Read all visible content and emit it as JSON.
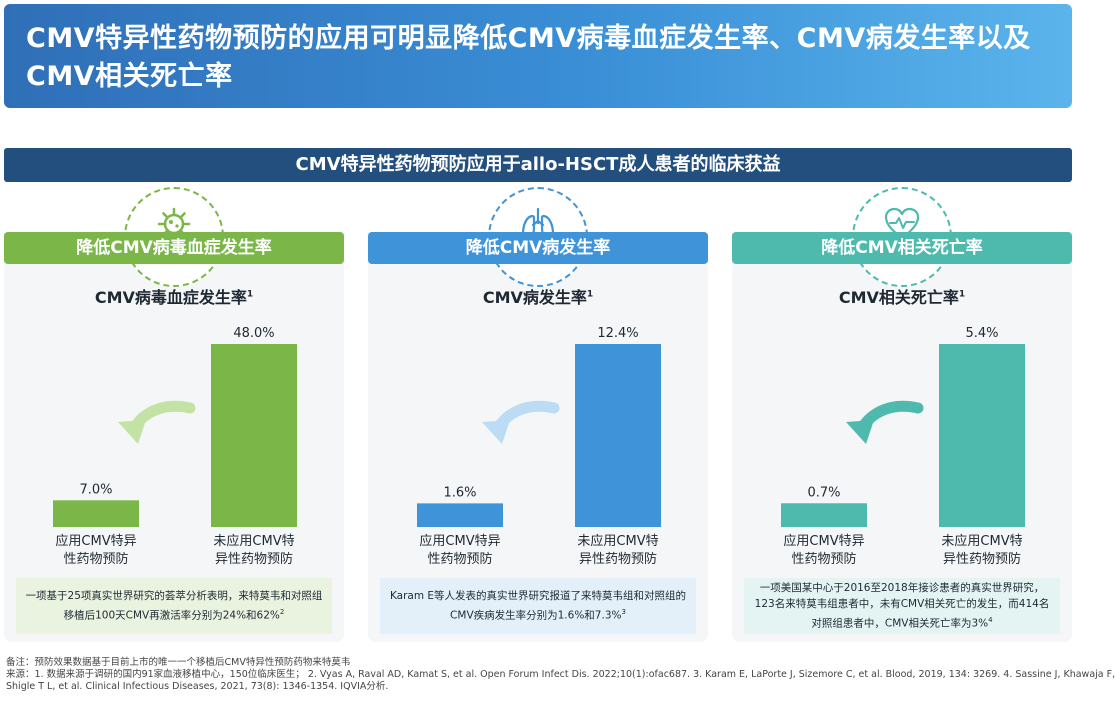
{
  "header": {
    "title": "CMV特异性药物预防的应用可明显降低CMV病毒血症发生率、CMV病发生率以及CMV相关死亡率"
  },
  "subbar": {
    "title": "CMV特异性药物预防应用于allo-HSCT成人患者的临床获益"
  },
  "panels": [
    {
      "caption": "降低CMV病毒血症发生率",
      "chart_title": "CMV病毒血症发生率",
      "chart_title_sup": "1",
      "icon": "virus-icon",
      "color": "#7ab648",
      "arrow_color": "#c3e3a4",
      "note": "一项基于25项真实世界研究的荟萃分析表明，来特莫韦和对照组移植后100天CMV再激活率分别为24%和62%",
      "note_sup": "2",
      "note_bg": "#eaf3e0"
    },
    {
      "caption": "降低CMV病发生率",
      "chart_title": "CMV病发生率",
      "chart_title_sup": "1",
      "icon": "lungs-icon",
      "color": "#3f93d9",
      "arrow_color": "#bcdcf5",
      "note": "Karam  E等人发表的真实世界研究报道了来特莫韦组和对照组的CMV疾病发生率分别为1.6%和7.3%",
      "note_sup": "3",
      "note_bg": "#e3f0fa"
    },
    {
      "caption": "降低CMV相关死亡率",
      "chart_title": "CMV相关死亡率",
      "chart_title_sup": "1",
      "icon": "heart-icon",
      "color": "#4dbaad",
      "arrow_color": "#4dbaad",
      "note": "一项美国某中心于2016至2018年接诊患者的真实世界研究，123名来特莫韦组患者中，未有CMV相关死亡的发生，而414名对照组患者中，CMV相关死亡率为3%",
      "note_sup": "4",
      "note_bg": "#e3f4f2"
    }
  ],
  "chart_data": [
    {
      "type": "bar",
      "title": "CMV病毒血症发生率",
      "categories": [
        "应用CMV特异性药物预防",
        "未应用CMV特异性药物预防"
      ],
      "category_lines": [
        [
          "应用CMV特异",
          "性药物预防"
        ],
        [
          "未应用CMV特",
          "异性药物预防"
        ]
      ],
      "values": [
        7.0,
        48.0
      ],
      "labels": [
        "7.0%",
        "48.0%"
      ]
    },
    {
      "type": "bar",
      "title": "CMV病发生率",
      "categories": [
        "应用CMV特异性药物预防",
        "未应用CMV特异性药物预防"
      ],
      "category_lines": [
        [
          "应用CMV特异",
          "性药物预防"
        ],
        [
          "未应用CMV特",
          "异性药物预防"
        ]
      ],
      "values": [
        1.6,
        12.4
      ],
      "labels": [
        "1.6%",
        "12.4%"
      ]
    },
    {
      "type": "bar",
      "title": "CMV相关死亡率",
      "categories": [
        "应用CMV特异性药物预防",
        "未应用CMV特异性药物预防"
      ],
      "category_lines": [
        [
          "应用CMV特异",
          "性药物预防"
        ],
        [
          "未应用CMV特",
          "异性药物预防"
        ]
      ],
      "values": [
        0.7,
        5.4
      ],
      "labels": [
        "0.7%",
        "5.4%"
      ]
    }
  ],
  "footer": {
    "line1": "备注：预防效果数据基于目前上市的唯一一个移植后CMV特异性预防药物来特莫韦",
    "line2": "来源：1. 数据来源于调研的国内91家血液移植中心，150位临床医生； 2. Vyas A, Raval AD, Kamat S, et al. Open Forum Infect Dis. 2022;10(1):ofac687. 3. Karam E, LaPorte J, Sizemore C, et al. Blood, 2019, 134: 3269. 4. Sassine J, Khawaja F,",
    "line3": "Shigle T L, et al. Clinical Infectious Diseases, 2021, 73(8): 1346-1354. IQVIA分析."
  }
}
